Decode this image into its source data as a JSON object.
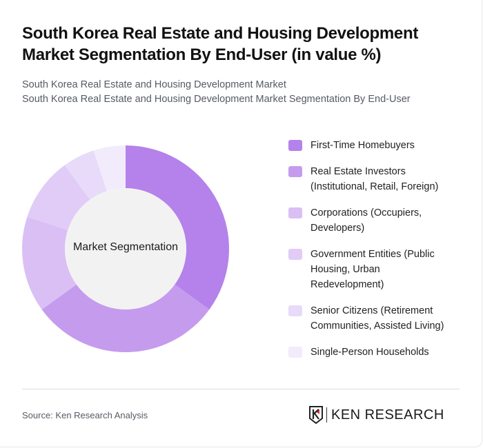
{
  "header": {
    "title": "South Korea Real Estate and Housing Development Market Segmentation By End-User (in value %)",
    "subtitle_line1": "South Korea Real Estate and Housing Development Market",
    "subtitle_line2": "South Korea Real Estate and Housing Development Market Segmentation By End-User"
  },
  "chart": {
    "center_label": "Market Segmentation"
  },
  "legend": [
    {
      "label": "First-Time Homebuyers",
      "color": "#b482ea"
    },
    {
      "label": "Real Estate Investors (Institutional, Retail, Foreign)",
      "color": "#c59bee"
    },
    {
      "label": "Corporations (Occupiers, Developers)",
      "color": "#dabff5"
    },
    {
      "label": "Government Entities (Public Housing, Urban Redevelopment)",
      "color": "#e0ccf7"
    },
    {
      "label": "Senior Citizens (Retirement Communities, Assisted Living)",
      "color": "#e8daf9"
    },
    {
      "label": "Single-Person Households",
      "color": "#f2ebfc"
    }
  ],
  "footer": {
    "source": "Source: Ken Research Analysis",
    "logo_text": "KEN RESEARCH"
  },
  "chart_data": {
    "type": "pie",
    "variant": "donut",
    "title": "South Korea Real Estate and Housing Development Market Segmentation By End-User (in value %)",
    "center_label": "Market Segmentation",
    "categories": [
      "First-Time Homebuyers",
      "Real Estate Investors (Institutional, Retail, Foreign)",
      "Corporations (Occupiers, Developers)",
      "Government Entities (Public Housing, Urban Redevelopment)",
      "Senior Citizens (Retirement Communities, Assisted Living)",
      "Single-Person Households"
    ],
    "values": [
      35,
      30,
      15,
      10,
      5,
      5
    ],
    "colors": [
      "#b482ea",
      "#c59bee",
      "#dabff5",
      "#e0ccf7",
      "#e8daf9",
      "#f2ebfc"
    ],
    "legend_position": "right",
    "unit": "%"
  }
}
